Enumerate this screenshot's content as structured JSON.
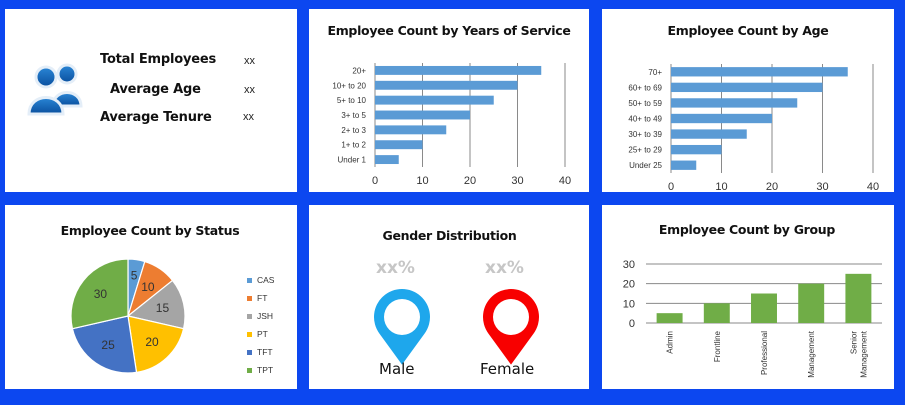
{
  "summary": {
    "icon": "users-icon",
    "rows": [
      {
        "label": "Total Employees",
        "value": "xx"
      },
      {
        "label": "Average Age",
        "value": "xx"
      },
      {
        "label": "Average Tenure",
        "value": "xx"
      }
    ]
  },
  "gender": {
    "title": "Gender Distribution",
    "male": {
      "label": "Male",
      "percent": "xx%",
      "color": "#1ea7ec",
      "icon": "map-pin-icon"
    },
    "female": {
      "label": "Female",
      "percent": "xx%",
      "color": "#f80000",
      "icon": "map-pin-icon"
    }
  },
  "chart_data": [
    {
      "id": "years_of_service",
      "type": "bar",
      "orientation": "horizontal",
      "title": "Employee Count by Years of Service",
      "categories": [
        "Under 1",
        "1+ to 2",
        "2+ to 3",
        "3+ to 5",
        "5+ to 10",
        "10+ to 20",
        "20+"
      ],
      "values": [
        5,
        10,
        15,
        20,
        25,
        30,
        35
      ],
      "xlim": [
        0,
        40
      ],
      "xticks": [
        0,
        10,
        20,
        30,
        40
      ],
      "grid": true,
      "color": "#5b9bd5",
      "xlabel": "",
      "ylabel": ""
    },
    {
      "id": "age",
      "type": "bar",
      "orientation": "horizontal",
      "title": "Employee Count by Age",
      "categories": [
        "Under 25",
        "25+ to 29",
        "30+ to 39",
        "40+ to 49",
        "50+ to 59",
        "60+ to 69",
        "70+"
      ],
      "values": [
        5,
        10,
        15,
        20,
        25,
        30,
        35
      ],
      "xlim": [
        0,
        40
      ],
      "xticks": [
        0,
        10,
        20,
        30,
        40
      ],
      "grid": true,
      "color": "#5b9bd5",
      "xlabel": "",
      "ylabel": ""
    },
    {
      "id": "status",
      "type": "pie",
      "title": "Employee Count by Status",
      "categories": [
        "CAS",
        "FT",
        "JSH",
        "PT",
        "TFT",
        "TPT"
      ],
      "values": [
        5,
        10,
        15,
        20,
        25,
        30
      ],
      "colors": [
        "#5b9bd5",
        "#ed7d31",
        "#a5a5a5",
        "#ffc000",
        "#4472c4",
        "#70ad47"
      ],
      "data_labels": true,
      "legend": "right"
    },
    {
      "id": "group",
      "type": "bar",
      "orientation": "vertical",
      "title": "Employee Count by Group",
      "categories": [
        "Admin",
        "Frontline",
        "Professional",
        "Management",
        "Senior Management"
      ],
      "values": [
        5,
        10,
        15,
        20,
        25
      ],
      "ylim": [
        0,
        30
      ],
      "yticks": [
        0,
        10,
        20,
        30
      ],
      "grid": true,
      "color": "#70ad47",
      "xlabel": "",
      "ylabel": ""
    }
  ]
}
